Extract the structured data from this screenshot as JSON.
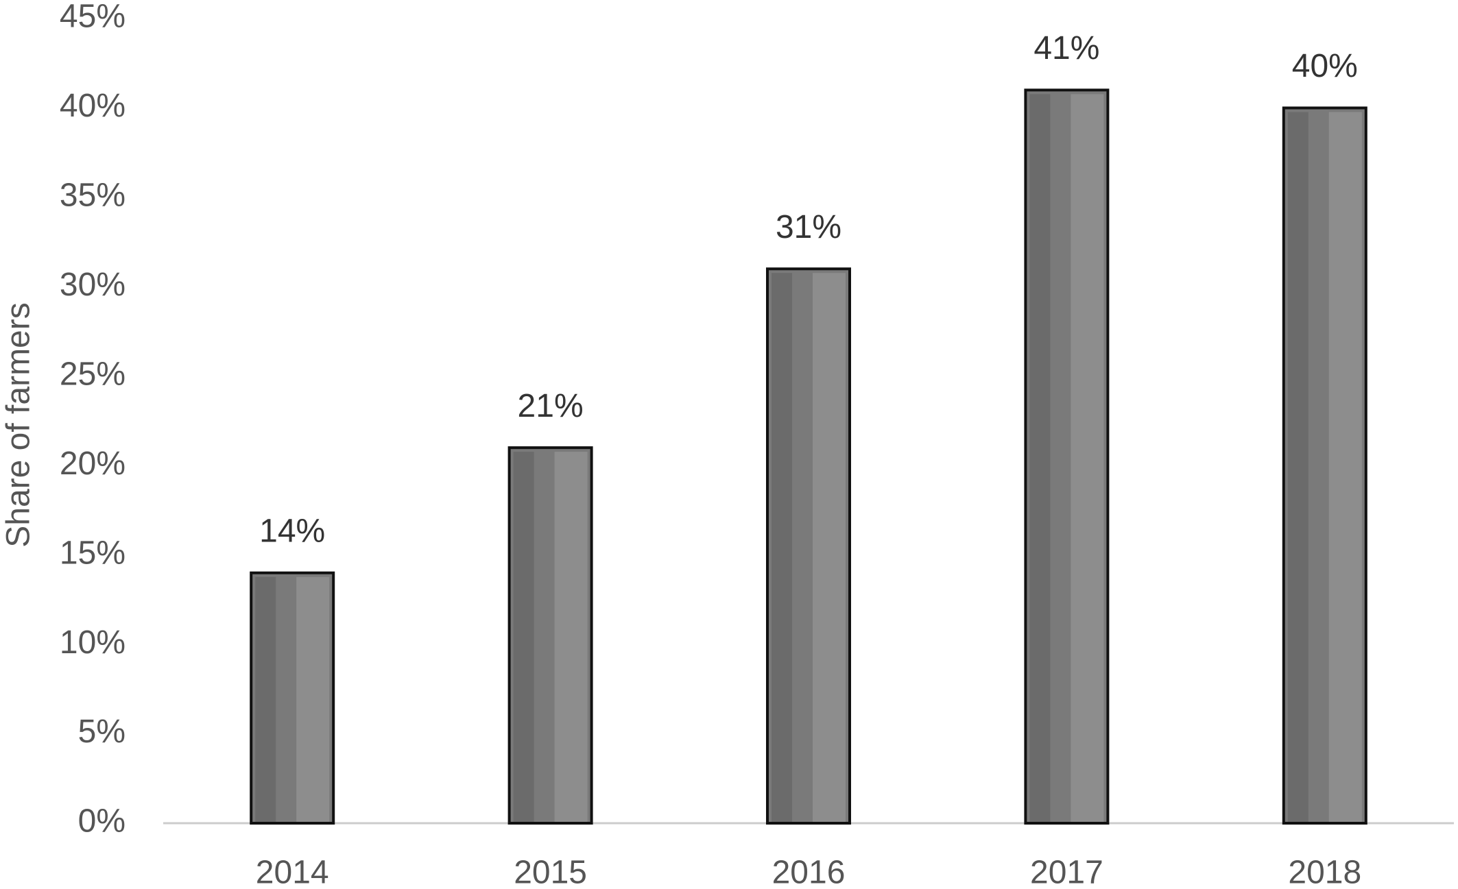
{
  "chart_data": {
    "type": "bar",
    "y_label": "Share of farmers",
    "categories": [
      "2014",
      "2015",
      "2016",
      "2017",
      "2018"
    ],
    "values": [
      14,
      21,
      31,
      41,
      40
    ],
    "value_labels": [
      "14%",
      "21%",
      "31%",
      "41%",
      "40%"
    ],
    "color": "#7a7a7a",
    "ylim": [
      0,
      45
    ],
    "yticks": [
      {
        "value": 0,
        "label": "0%"
      },
      {
        "value": 5,
        "label": "5%"
      },
      {
        "value": 10,
        "label": "10%"
      },
      {
        "value": 15,
        "label": "15%"
      },
      {
        "value": 20,
        "label": "20%"
      },
      {
        "value": 25,
        "label": "25%"
      },
      {
        "value": 30,
        "label": "30%"
      },
      {
        "value": 35,
        "label": "35%"
      },
      {
        "value": 40,
        "label": "40%"
      },
      {
        "value": 45,
        "label": "45%"
      }
    ],
    "grid": false
  }
}
